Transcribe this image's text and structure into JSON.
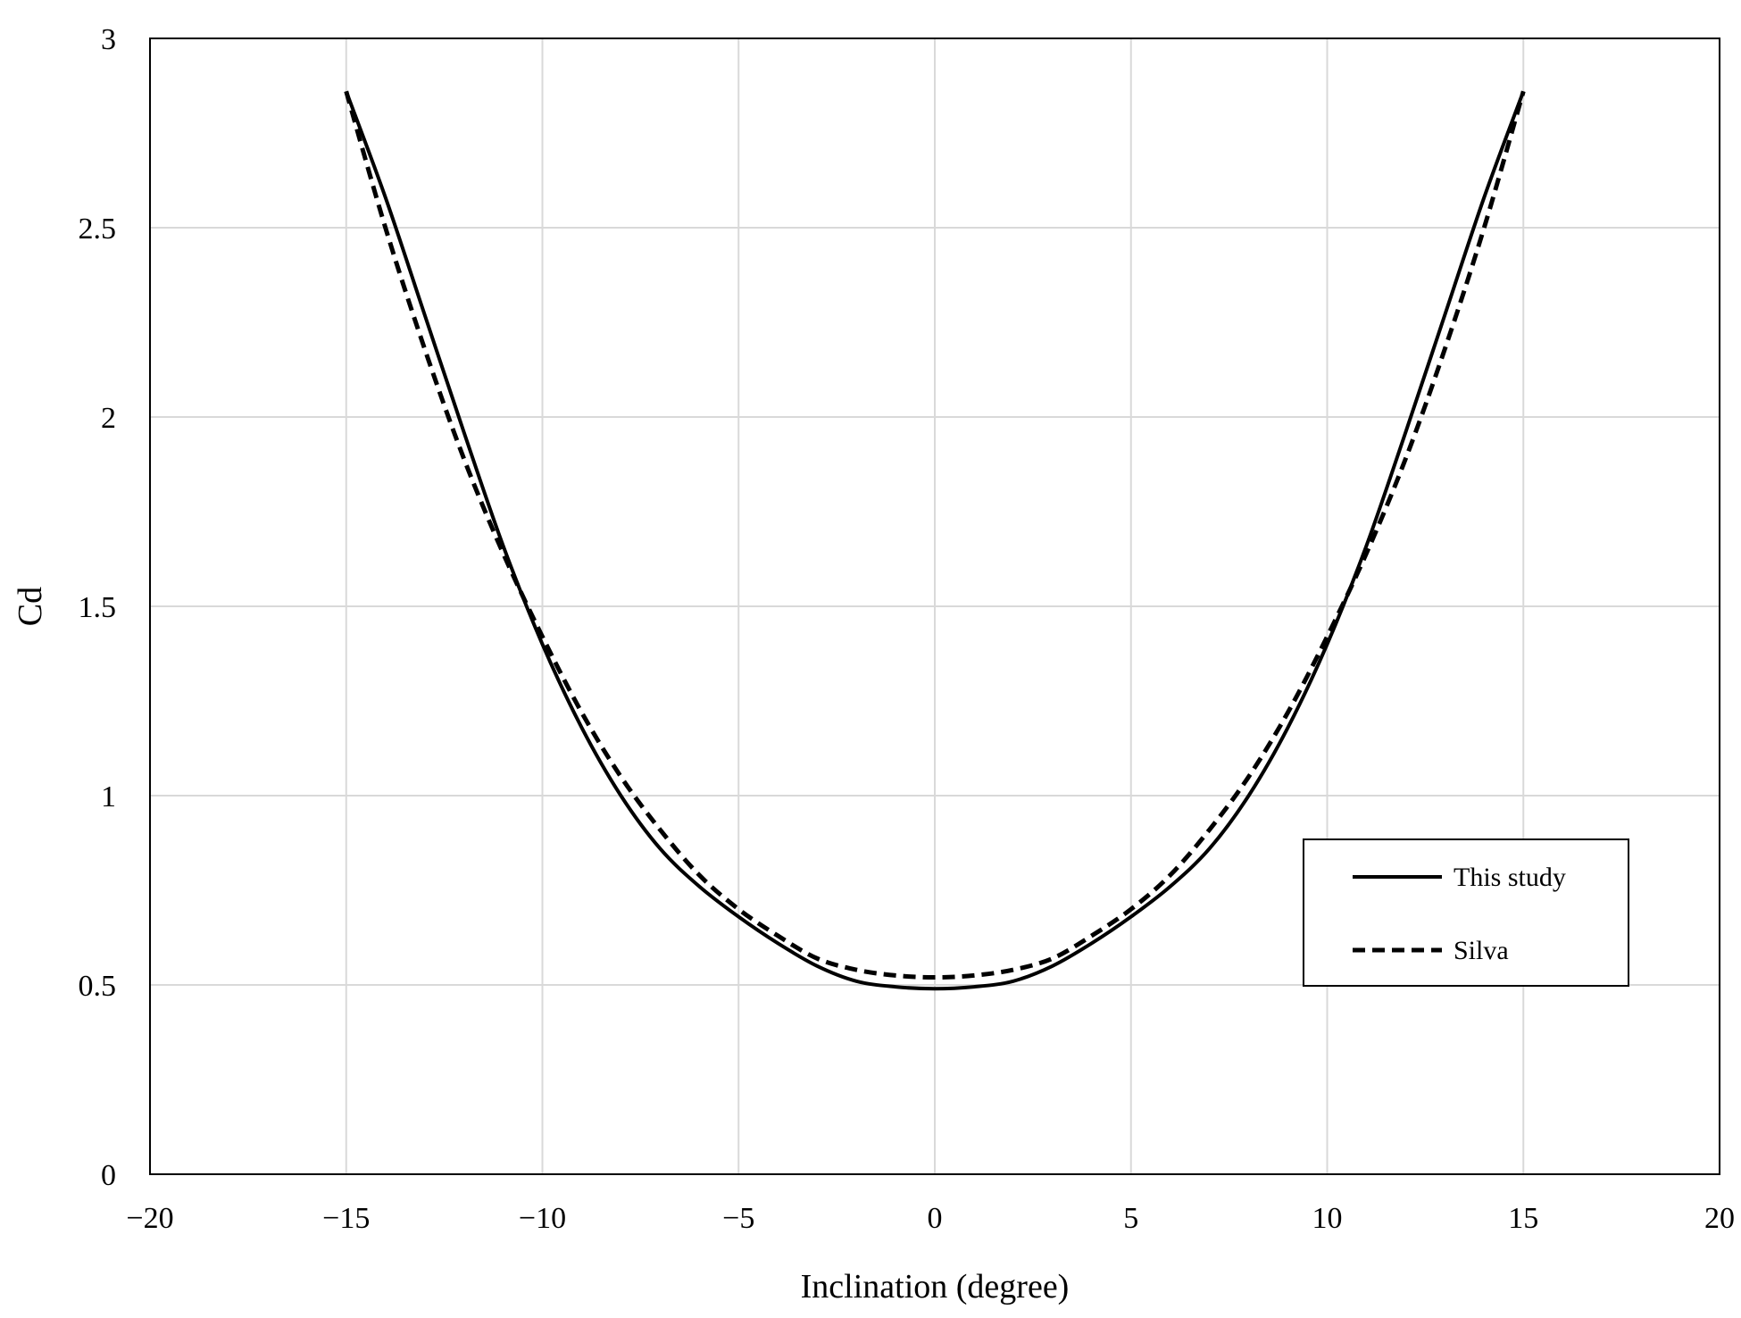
{
  "chart_data": {
    "type": "line",
    "xlabel": "Inclination (degree)",
    "ylabel": "Cd",
    "xlim": [
      -20,
      20
    ],
    "ylim": [
      0,
      3
    ],
    "x_ticks": [
      -20,
      -15,
      -10,
      -5,
      0,
      5,
      10,
      15,
      20
    ],
    "y_ticks": [
      0,
      0.5,
      1,
      1.5,
      2,
      2.5,
      3
    ],
    "x_tick_labels": [
      "−20",
      "−15",
      "−10",
      "−5",
      "0",
      "5",
      "10",
      "15",
      "20"
    ],
    "y_tick_labels": [
      "0",
      "0.5",
      "1",
      "1.5",
      "2",
      "2.5",
      "3"
    ],
    "grid": true,
    "legend_position": "right",
    "series": [
      {
        "name": "This study",
        "style": "solid",
        "color": "#000000",
        "x": [
          -15,
          -14,
          -13,
          -12,
          -11,
          -10,
          -9,
          -8,
          -7,
          -6,
          -5,
          -4,
          -3,
          -2,
          -1,
          0,
          1,
          2,
          3,
          4,
          5,
          6,
          7,
          8,
          9,
          10,
          11,
          12,
          13,
          14,
          15
        ],
        "y": [
          2.86,
          2.58,
          2.27,
          1.96,
          1.66,
          1.4,
          1.18,
          1.0,
          0.86,
          0.76,
          0.68,
          0.61,
          0.55,
          0.51,
          0.495,
          0.49,
          0.495,
          0.51,
          0.55,
          0.61,
          0.68,
          0.76,
          0.86,
          1.0,
          1.18,
          1.4,
          1.66,
          1.96,
          2.27,
          2.58,
          2.86
        ]
      },
      {
        "name": "Silva",
        "style": "dashed",
        "color": "#000000",
        "x": [
          -15,
          -14,
          -13,
          -12,
          -11,
          -10,
          -9,
          -8,
          -7,
          -6,
          -5,
          -4,
          -3,
          -2,
          -1,
          0,
          1,
          2,
          3,
          4,
          5,
          6,
          7,
          8,
          9,
          10,
          11,
          12,
          13,
          14,
          15
        ],
        "y": [
          2.86,
          2.5,
          2.18,
          1.89,
          1.64,
          1.42,
          1.22,
          1.05,
          0.91,
          0.79,
          0.7,
          0.63,
          0.57,
          0.54,
          0.525,
          0.52,
          0.525,
          0.54,
          0.57,
          0.63,
          0.7,
          0.79,
          0.91,
          1.05,
          1.22,
          1.42,
          1.64,
          1.89,
          2.18,
          2.5,
          2.86
        ]
      }
    ]
  }
}
